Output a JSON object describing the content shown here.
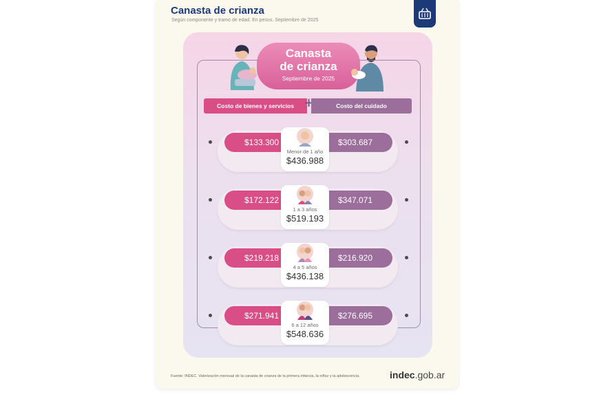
{
  "colors": {
    "title": "#1d3a78",
    "pink": "#d94e86",
    "purple": "#9b6e9c"
  },
  "header": {
    "title": "Canasta de crianza",
    "subtitle": "Según componente y tramo de edad. En pesos. Septiembre de 2025"
  },
  "badge": {
    "icon": "basket-icon"
  },
  "banner": {
    "line1": "Canasta",
    "line2": "de crianza",
    "date": "Septiembre de 2025"
  },
  "categories": {
    "left": "Costo de bienes y servicios",
    "plus": "+",
    "right": "Costo del cuidado"
  },
  "rows": [
    {
      "goods": "$133.300",
      "care": "$303.687",
      "age": "Menor de 1 año",
      "total": "$436.988"
    },
    {
      "goods": "$172.122",
      "care": "$347.071",
      "age": "1 a 3 años",
      "total": "$519.193"
    },
    {
      "goods": "$219.218",
      "care": "$216.920",
      "age": "4 a 5 años",
      "total": "$436.138"
    },
    {
      "goods": "$271.941",
      "care": "$276.695",
      "age": "6 a 12 años",
      "total": "$548.636"
    }
  ],
  "footer": {
    "source": "Fuente: INDEC. Valorización mensual de la canasta de crianza de la primera infancia, la niñez y la adolescencia.",
    "logo_main": "indec",
    "logo_suffix": ".gob.ar"
  }
}
